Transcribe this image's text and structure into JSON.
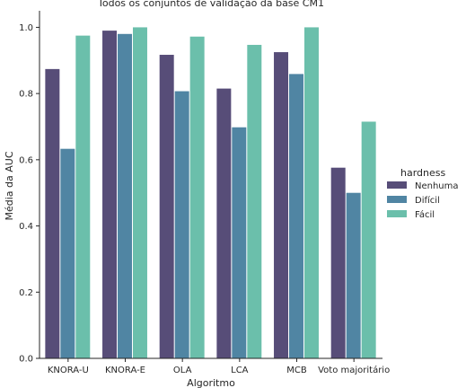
{
  "chart_data": {
    "type": "bar",
    "title": "Todos os conjuntos de validação da base CM1",
    "xlabel": "Algoritmo",
    "ylabel": "Média da AUC",
    "ylim": [
      0,
      1.05
    ],
    "yticks": [
      "0.0",
      "0.2",
      "0.4",
      "0.6",
      "0.8",
      "1.0"
    ],
    "categories": [
      "KNORA-U",
      "KNORA-E",
      "OLA",
      "LCA",
      "MCB",
      "Voto majoritário"
    ],
    "series": [
      {
        "name": "Nenhuma",
        "color": "#574d78",
        "values": [
          0.874,
          0.99,
          0.917,
          0.815,
          0.925,
          0.576
        ]
      },
      {
        "name": "Difícil",
        "color": "#5085a3",
        "values": [
          0.633,
          0.98,
          0.807,
          0.698,
          0.859,
          0.5
        ]
      },
      {
        "name": "Fácil",
        "color": "#6bbfab",
        "values": [
          0.975,
          1.0,
          0.972,
          0.947,
          1.0,
          0.715
        ]
      }
    ],
    "legend": {
      "title": "hardness",
      "placement": "right"
    },
    "grid": false
  }
}
